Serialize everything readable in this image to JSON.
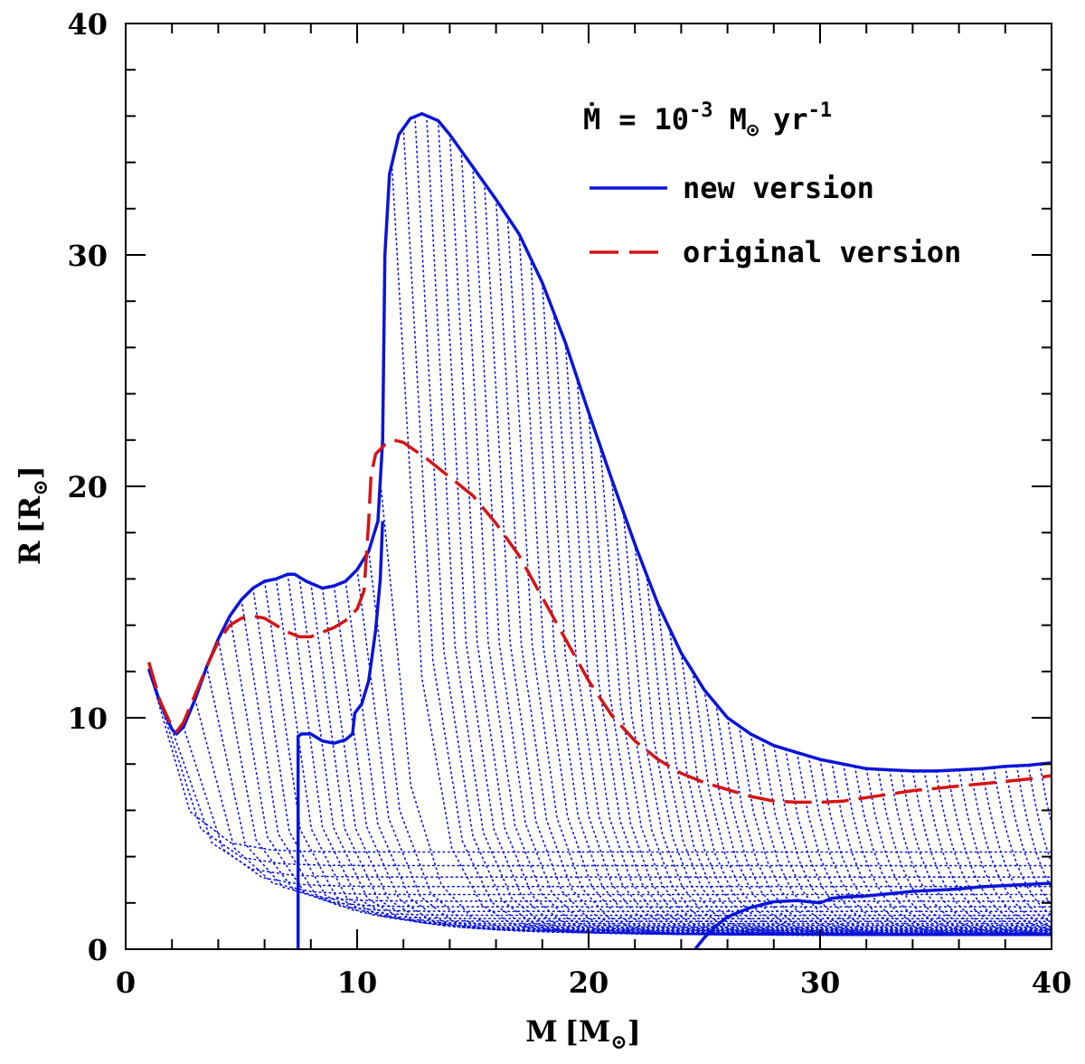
{
  "chart_data": {
    "type": "line",
    "xlabel": {
      "main": "M",
      "unit": "M",
      "unit_sub": "⊙"
    },
    "ylabel": {
      "main": "R",
      "unit": "R",
      "unit_sub": "⊙"
    },
    "xlim": [
      0,
      40
    ],
    "ylim": [
      0,
      40
    ],
    "x_ticks": [
      0,
      10,
      20,
      30,
      40
    ],
    "y_ticks": [
      0,
      10,
      20,
      30,
      40
    ],
    "x_tick_labels": [
      "0",
      "10",
      "20",
      "30",
      "40"
    ],
    "y_tick_labels": [
      "0",
      "10",
      "20",
      "30",
      "40"
    ],
    "grid": false,
    "legend_position": "top-right",
    "annotation": {
      "mdot": "Ṁ",
      "equals": "=",
      "value": "10",
      "exp": "-3",
      "unit": "M",
      "unit_sub": "⊙",
      "yr": "yr",
      "yr_exp": "-1"
    },
    "colors": {
      "new": "#0a14d8",
      "original": "#d41414",
      "text": "#000000"
    },
    "series": [
      {
        "name": "new version",
        "style": "solid",
        "points": [
          [
            1,
            12.1
          ],
          [
            1.5,
            10.6
          ],
          [
            2,
            9.5
          ],
          [
            2.2,
            9.3
          ],
          [
            2.5,
            9.6
          ],
          [
            3,
            10.8
          ],
          [
            3.5,
            12.2
          ],
          [
            4,
            13.4
          ],
          [
            4.5,
            14.4
          ],
          [
            5,
            15.1
          ],
          [
            5.5,
            15.6
          ],
          [
            6,
            15.9
          ],
          [
            6.5,
            16.0
          ],
          [
            7,
            16.2
          ],
          [
            7.3,
            16.2
          ],
          [
            7.8,
            15.9
          ],
          [
            8.5,
            15.6
          ],
          [
            9,
            15.7
          ],
          [
            9.5,
            15.9
          ],
          [
            10,
            16.4
          ],
          [
            10.5,
            17.2
          ],
          [
            10.9,
            18.5
          ],
          [
            11.1,
            22
          ],
          [
            11.2,
            30
          ],
          [
            11.4,
            33.5
          ],
          [
            11.8,
            35.2
          ],
          [
            12.3,
            35.9
          ],
          [
            12.8,
            36.1
          ],
          [
            13.5,
            35.8
          ],
          [
            14,
            35.2
          ],
          [
            15,
            33.8
          ],
          [
            16,
            32.4
          ],
          [
            17,
            30.9
          ],
          [
            18,
            28.8
          ],
          [
            19,
            26.2
          ],
          [
            20,
            23.2
          ],
          [
            21,
            20.3
          ],
          [
            22,
            17.5
          ],
          [
            23,
            14.9
          ],
          [
            24,
            12.8
          ],
          [
            25,
            11.2
          ],
          [
            26,
            10.0
          ],
          [
            27,
            9.3
          ],
          [
            28,
            8.8
          ],
          [
            29,
            8.5
          ],
          [
            30,
            8.2
          ],
          [
            31,
            8.0
          ],
          [
            32,
            7.8
          ],
          [
            33,
            7.75
          ],
          [
            34,
            7.7
          ],
          [
            35,
            7.7
          ],
          [
            36,
            7.75
          ],
          [
            37,
            7.8
          ],
          [
            38,
            7.9
          ],
          [
            39,
            7.95
          ],
          [
            40,
            8.05
          ]
        ]
      },
      {
        "name": "original version",
        "style": "dashed",
        "points": [
          [
            1,
            12.4
          ],
          [
            1.5,
            10.7
          ],
          [
            2,
            9.6
          ],
          [
            2.2,
            9.4
          ],
          [
            2.5,
            9.8
          ],
          [
            3,
            11.0
          ],
          [
            3.5,
            12.2
          ],
          [
            4,
            13.3
          ],
          [
            4.5,
            14.0
          ],
          [
            5,
            14.3
          ],
          [
            5.5,
            14.4
          ],
          [
            6,
            14.3
          ],
          [
            6.5,
            14.0
          ],
          [
            7,
            13.7
          ],
          [
            7.5,
            13.5
          ],
          [
            8,
            13.5
          ],
          [
            8.5,
            13.7
          ],
          [
            9,
            13.9
          ],
          [
            9.5,
            14.2
          ],
          [
            10,
            14.7
          ],
          [
            10.3,
            15.5
          ],
          [
            10.5,
            18.5
          ],
          [
            10.6,
            20.5
          ],
          [
            10.8,
            21.4
          ],
          [
            11.2,
            21.8
          ],
          [
            11.6,
            22.0
          ],
          [
            12,
            21.9
          ],
          [
            13,
            21.2
          ],
          [
            14,
            20.4
          ],
          [
            15,
            19.6
          ],
          [
            16,
            18.4
          ],
          [
            17,
            17.0
          ],
          [
            18,
            15.2
          ],
          [
            19,
            13.4
          ],
          [
            20,
            11.6
          ],
          [
            21,
            10.1
          ],
          [
            22,
            9.0
          ],
          [
            23,
            8.2
          ],
          [
            24,
            7.6
          ],
          [
            25,
            7.2
          ],
          [
            26,
            6.9
          ],
          [
            27,
            6.6
          ],
          [
            28,
            6.4
          ],
          [
            29,
            6.35
          ],
          [
            30,
            6.35
          ],
          [
            31,
            6.4
          ],
          [
            32,
            6.55
          ],
          [
            33,
            6.7
          ],
          [
            34,
            6.85
          ],
          [
            35,
            6.95
          ],
          [
            36,
            7.05
          ],
          [
            37,
            7.15
          ],
          [
            38,
            7.25
          ],
          [
            39,
            7.35
          ],
          [
            40,
            7.5
          ]
        ]
      },
      {
        "name": "",
        "style": "solid",
        "points": [
          [
            7.45,
            0
          ],
          [
            7.45,
            9.2
          ],
          [
            7.6,
            9.3
          ],
          [
            8,
            9.3
          ],
          [
            8.5,
            9.0
          ],
          [
            9,
            8.9
          ],
          [
            9.5,
            9.05
          ],
          [
            9.8,
            9.3
          ],
          [
            9.9,
            10.2
          ],
          [
            10.2,
            10.6
          ],
          [
            10.5,
            11.6
          ],
          [
            10.8,
            13.8
          ],
          [
            11.0,
            16.0
          ],
          [
            11.1,
            18.5
          ]
        ]
      },
      {
        "name": "",
        "style": "solid",
        "points": [
          [
            24.6,
            0
          ],
          [
            25,
            0.5
          ],
          [
            25.5,
            1.0
          ],
          [
            26,
            1.4
          ],
          [
            27,
            1.8
          ],
          [
            28,
            2.05
          ],
          [
            29,
            2.1
          ],
          [
            30,
            2.0
          ],
          [
            30.5,
            2.2
          ],
          [
            31,
            2.25
          ],
          [
            32,
            2.3
          ],
          [
            33,
            2.4
          ],
          [
            34,
            2.5
          ],
          [
            35,
            2.55
          ],
          [
            36,
            2.6
          ],
          [
            37,
            2.7
          ],
          [
            38,
            2.75
          ],
          [
            39,
            2.8
          ],
          [
            40,
            2.85
          ]
        ]
      }
    ],
    "legend": [
      {
        "label": "new version",
        "style": "solid"
      },
      {
        "label": "original version",
        "style": "dashed"
      }
    ]
  }
}
